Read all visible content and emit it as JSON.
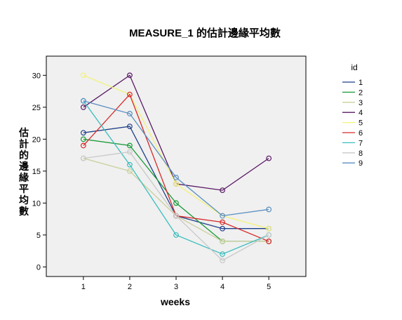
{
  "chart_data": {
    "type": "line",
    "title": "MEASURE_1 的估計邊緣平均數",
    "xlabel": "weeks",
    "ylabel": "估計的邊緣平均數",
    "x": [
      1,
      2,
      3,
      4,
      5
    ],
    "x_ticks": [
      "1",
      "2",
      "3",
      "4",
      "5"
    ],
    "y_ticks": [
      "0",
      "5",
      "10",
      "15",
      "20",
      "25",
      "30"
    ],
    "ylim": [
      -1.5,
      33
    ],
    "xlim": [
      0.2,
      5.8
    ],
    "legend_title": "id",
    "legend_position": "right",
    "grid": false,
    "series": [
      {
        "name": "1",
        "color": "#1f3f8a",
        "values": [
          21,
          22,
          8,
          6,
          6
        ]
      },
      {
        "name": "2",
        "color": "#1a9a3a",
        "values": [
          20,
          19,
          10,
          4,
          4
        ]
      },
      {
        "name": "3",
        "color": "#c9cf9b",
        "values": [
          17,
          15,
          8,
          4,
          4
        ]
      },
      {
        "name": "4",
        "color": "#5a1a66",
        "values": [
          25,
          30,
          13,
          12,
          17
        ]
      },
      {
        "name": "5",
        "color": "#f2f27a",
        "values": [
          30,
          27,
          13,
          8,
          6
        ]
      },
      {
        "name": "6",
        "color": "#d62a2a",
        "values": [
          19,
          27,
          8,
          7,
          4
        ]
      },
      {
        "name": "7",
        "color": "#3bbdbd",
        "values": [
          26,
          16,
          5,
          2,
          5
        ]
      },
      {
        "name": "8",
        "color": "#c8c8c8",
        "values": [
          17,
          18,
          8,
          1,
          5
        ]
      },
      {
        "name": "9",
        "color": "#5a8fc0",
        "values": [
          26,
          24,
          14,
          8,
          9
        ]
      }
    ]
  }
}
